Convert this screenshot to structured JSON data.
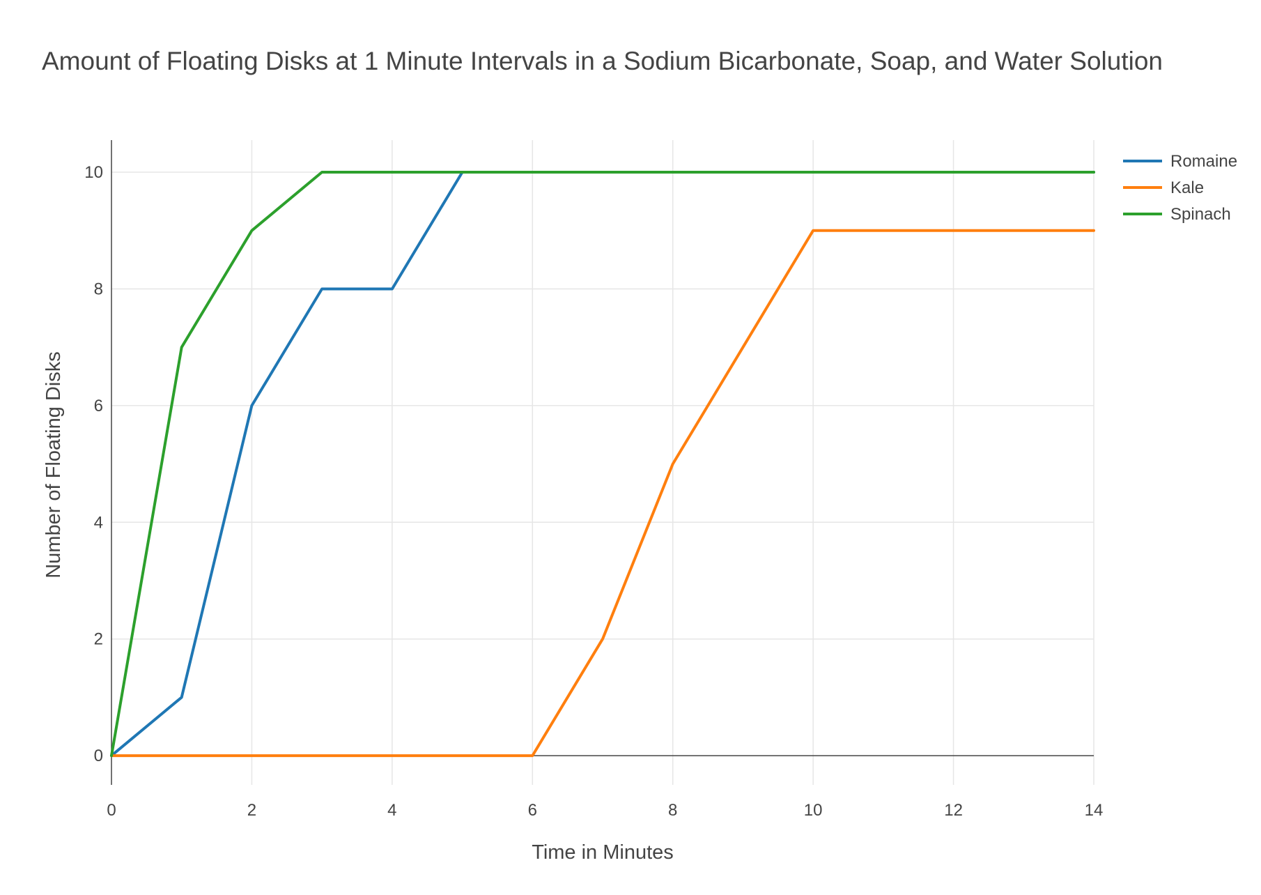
{
  "chart_data": {
    "type": "line",
    "title": "Amount of Floating Disks at 1 Minute Intervals in a Sodium Bicarbonate, Soap, and Water Solution",
    "xlabel": "Time in Minutes",
    "ylabel": "Number of Floating Disks",
    "xlim": [
      0,
      14
    ],
    "ylim": [
      -0.5,
      10.55
    ],
    "x_ticks": [
      0,
      2,
      4,
      6,
      8,
      10,
      12,
      14
    ],
    "y_ticks": [
      0,
      2,
      4,
      6,
      8,
      10
    ],
    "grid": true,
    "legend_position": "top-right",
    "x": [
      0,
      1,
      2,
      3,
      4,
      5,
      6,
      7,
      8,
      9,
      10,
      11,
      12,
      13,
      14
    ],
    "series": [
      {
        "name": "Romaine",
        "color": "#1f77b4",
        "values": [
          0,
          1,
          6,
          8,
          8,
          10,
          10,
          10,
          10,
          10,
          10,
          10,
          10,
          10,
          10
        ]
      },
      {
        "name": "Kale",
        "color": "#ff7f0e",
        "values": [
          0,
          0,
          0,
          0,
          0,
          0,
          0,
          2,
          5,
          7,
          9,
          9,
          9,
          9,
          9
        ]
      },
      {
        "name": "Spinach",
        "color": "#2ca02c",
        "values": [
          0,
          7,
          9,
          10,
          10,
          10,
          10,
          10,
          10,
          10,
          10,
          10,
          10,
          10,
          10
        ]
      }
    ]
  }
}
